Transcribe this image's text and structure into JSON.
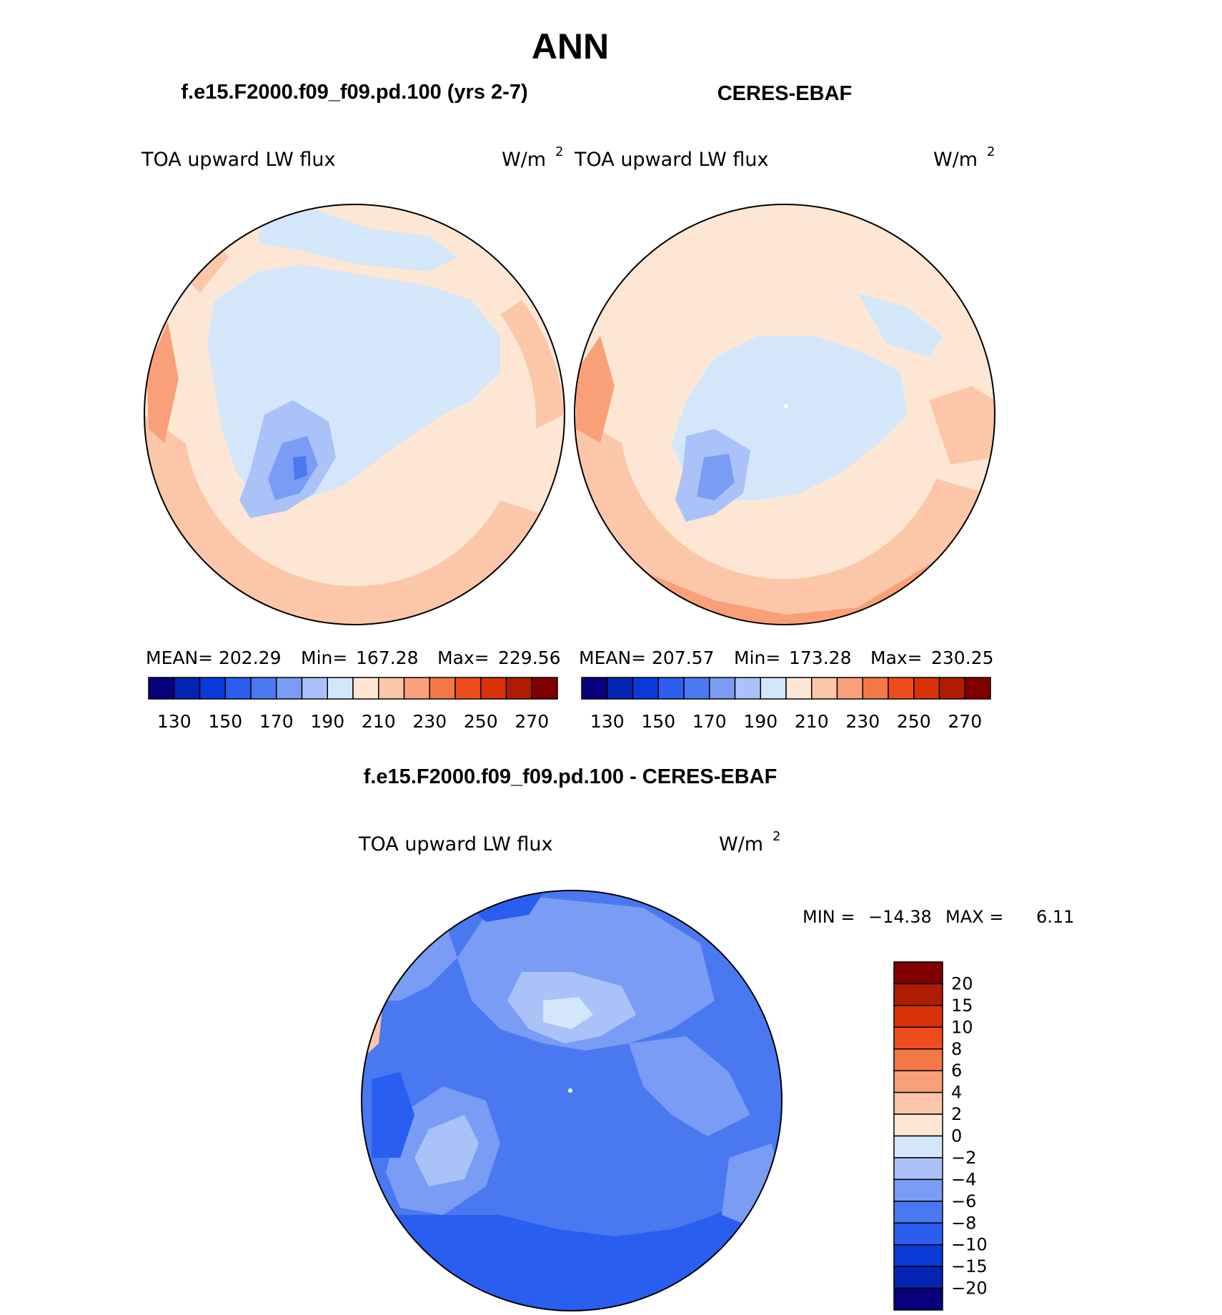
{
  "figure": {
    "season": "ANN",
    "panel_left_title": "f.e15.F2000.f09_f09.pd.100 (yrs 2-7)",
    "panel_right_title": "CERES-EBAF",
    "diff_title": "f.e15.F2000.f09_f09.pd.100 - CERES-EBAF"
  },
  "left_map": {
    "variable": "TOA upward LW flux",
    "units": "W/m",
    "units_sup": "2",
    "stats": {
      "mean_label": "MEAN=",
      "mean": "202.29",
      "min_label": "Min=",
      "min": "167.28",
      "max_label": "Max=",
      "max": "229.56"
    }
  },
  "right_map": {
    "variable": "TOA upward LW flux",
    "units": "W/m",
    "units_sup": "2",
    "stats": {
      "mean_label": "MEAN=",
      "mean": "207.57",
      "min_label": "Min=",
      "min": "173.28",
      "max_label": "Max=",
      "max": "230.25"
    }
  },
  "diff_map": {
    "variable": "TOA upward LW flux",
    "units": "W/m",
    "units_sup": "2",
    "minmax": {
      "min_label": "MIN =",
      "min": "−14.38",
      "max_label": "MAX =",
      "max": "6.11"
    }
  },
  "colorbar_abs": {
    "colors": [
      "#08007c",
      "#0424b4",
      "#0a3ad8",
      "#2a5ef0",
      "#4a78f0",
      "#7a9cf4",
      "#aac2f8",
      "#d4e6fa",
      "#fde7d4",
      "#fcc6a8",
      "#f9a078",
      "#f57848",
      "#ef4c1e",
      "#d83208",
      "#b01c02",
      "#800000"
    ],
    "tick_labels": [
      "130",
      "150",
      "170",
      "190",
      "210",
      "230",
      "250",
      "270"
    ]
  },
  "colorbar_diff": {
    "colors_top_to_bottom": [
      "#800000",
      "#b01c02",
      "#d83208",
      "#ef4c1e",
      "#f57848",
      "#f9a078",
      "#fcc6a8",
      "#fde7d4",
      "#d4e6fa",
      "#aac2f8",
      "#7a9cf4",
      "#4a78f0",
      "#2a5ef0",
      "#0a3ad8",
      "#0424b4",
      "#08007c"
    ],
    "tick_labels": [
      "20",
      "15",
      "10",
      "8",
      "6",
      "4",
      "2",
      "0",
      "−2",
      "−4",
      "−6",
      "−8",
      "−10",
      "−15",
      "−20"
    ]
  },
  "colors": {
    "ice_blue": "#d4e6fa",
    "light_blue": "#aac2f8",
    "mid_blue": "#7a9cf4",
    "blue": "#4a78f0",
    "deep_blue": "#2a5ef0",
    "cream": "#fde7d4",
    "peach": "#fcc6a8",
    "salmon": "#f9a078",
    "orange": "#f57848"
  }
}
